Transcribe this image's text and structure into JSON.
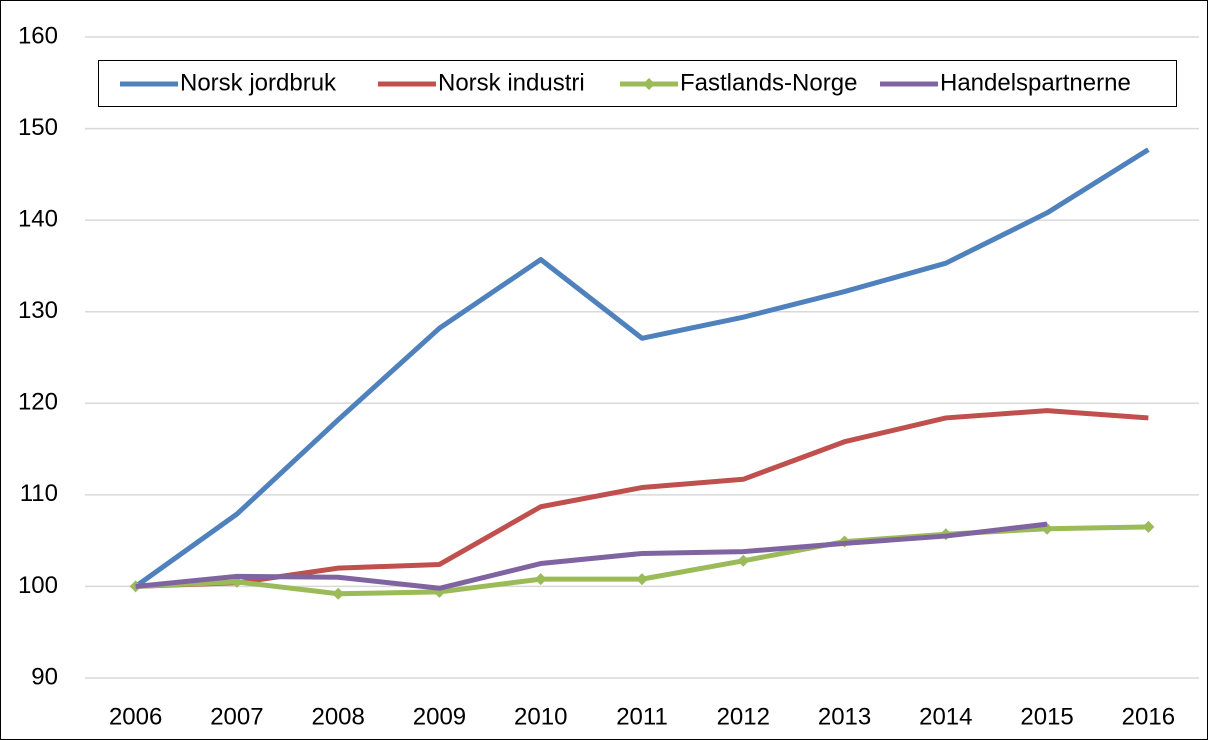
{
  "chart_data": {
    "type": "line",
    "categories": [
      "2006",
      "2007",
      "2008",
      "2009",
      "2010",
      "2011",
      "2012",
      "2013",
      "2014",
      "2015",
      "2016"
    ],
    "series": [
      {
        "name": "Norsk jordbruk",
        "color": "#4f81bd",
        "values": [
          100,
          107.9,
          118.2,
          128.2,
          135.7,
          127.1,
          129.4,
          132.2,
          135.3,
          140.8,
          147.7
        ]
      },
      {
        "name": "Norsk industri",
        "color": "#c0504d",
        "values": [
          100,
          100.4,
          102.0,
          102.4,
          108.7,
          110.8,
          111.7,
          115.8,
          118.4,
          119.2,
          118.4
        ]
      },
      {
        "name": "Fastlands-Norge",
        "color": "#9bbb59",
        "marker": "diamond",
        "values": [
          100,
          100.5,
          99.2,
          99.4,
          100.8,
          100.8,
          102.8,
          104.9,
          105.7,
          106.3,
          106.5
        ]
      },
      {
        "name": "Handelspartnerne",
        "color": "#8064a2",
        "values": [
          100,
          101.1,
          101.0,
          99.8,
          102.5,
          103.6,
          103.8,
          104.7,
          105.5,
          106.8,
          null
        ]
      }
    ],
    "ylim": [
      90,
      160
    ],
    "yticks": [
      90,
      100,
      110,
      120,
      130,
      140,
      150,
      160
    ],
    "grid": true,
    "legend": "top"
  }
}
